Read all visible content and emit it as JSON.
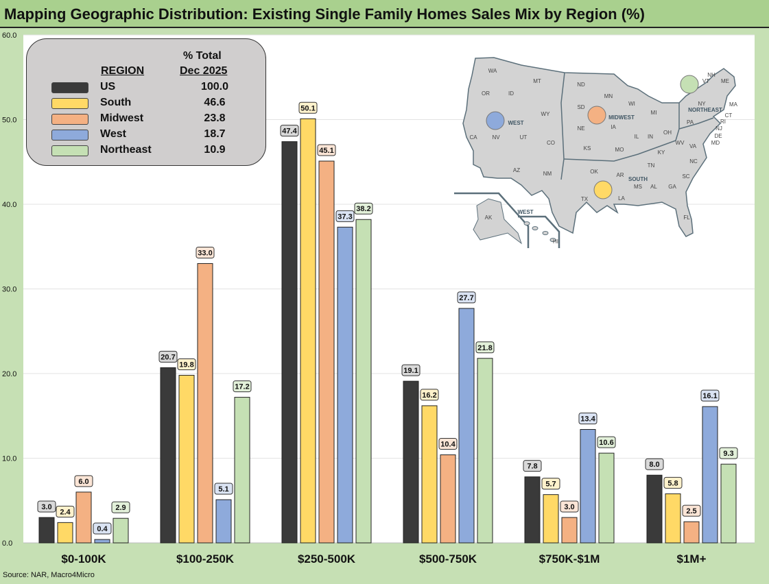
{
  "title": "Mapping Geographic Distribution: Existing Single Family Homes Sales Mix by Region (%)",
  "source": "Source: NAR, Macro4Micro",
  "legend": {
    "col_region": "REGION",
    "col_pct_line1": "% Total",
    "col_pct_line2": "Dec 2025",
    "rows": [
      {
        "name": "US",
        "value": "100.0",
        "color": "#3a3a3a"
      },
      {
        "name": "South",
        "value": "46.6",
        "color": "#ffd966"
      },
      {
        "name": "Midwest",
        "value": "23.8",
        "color": "#f4b183"
      },
      {
        "name": "West",
        "value": "18.7",
        "color": "#8eaadb"
      },
      {
        "name": "Northeast",
        "value": "10.9",
        "color": "#c5e0b4"
      }
    ]
  },
  "map": {
    "states": [
      "WA",
      "OR",
      "ID",
      "MT",
      "WY",
      "CA",
      "NV",
      "UT",
      "CO",
      "AZ",
      "NM",
      "ND",
      "SD",
      "NE",
      "KS",
      "MN",
      "IA",
      "MO",
      "WI",
      "MI",
      "IL",
      "IN",
      "OH",
      "KY",
      "TN",
      "WV",
      "VA",
      "NC",
      "SC",
      "GA",
      "AL",
      "MS",
      "LA",
      "AR",
      "OK",
      "TX",
      "FL",
      "PA",
      "NY",
      "VT",
      "NH",
      "ME",
      "MA",
      "CT",
      "RI",
      "NJ",
      "DE",
      "MD",
      "AK",
      "HI"
    ],
    "regions": [
      "WEST",
      "MIDWEST",
      "NORTHEAST",
      "SOUTH",
      "WEST"
    ]
  },
  "chart_data": {
    "type": "bar",
    "title": "Mapping Geographic Distribution: Existing Single Family Homes Sales Mix by Region (%)",
    "categories": [
      "$0-100K",
      "$100-250K",
      "$250-500K",
      "$500-750K",
      "$750K-$1M",
      "$1M+"
    ],
    "ylim": [
      0,
      60
    ],
    "yticks": [
      "0.0",
      "10.0",
      "20.0",
      "30.0",
      "40.0",
      "50.0",
      "60.0"
    ],
    "grid": true,
    "legend_position": "top-left",
    "series": [
      {
        "name": "US",
        "color": "#3a3a3a",
        "label_bg": "#d9d9d9",
        "values": [
          3.0,
          20.7,
          47.4,
          19.1,
          7.8,
          8.0
        ]
      },
      {
        "name": "South",
        "color": "#ffd966",
        "label_bg": "#fff2cc",
        "values": [
          2.4,
          19.8,
          50.1,
          16.2,
          5.7,
          5.8
        ]
      },
      {
        "name": "Midwest",
        "color": "#f4b183",
        "label_bg": "#fbe5d6",
        "values": [
          6.0,
          33.0,
          45.1,
          10.4,
          3.0,
          2.5
        ]
      },
      {
        "name": "West",
        "color": "#8eaadb",
        "label_bg": "#dae3f3",
        "values": [
          0.4,
          5.1,
          37.3,
          27.7,
          13.4,
          16.1
        ]
      },
      {
        "name": "Northeast",
        "color": "#c5e0b4",
        "label_bg": "#e2f0d9",
        "values": [
          2.9,
          17.2,
          38.2,
          21.8,
          10.6,
          9.3
        ]
      }
    ]
  }
}
